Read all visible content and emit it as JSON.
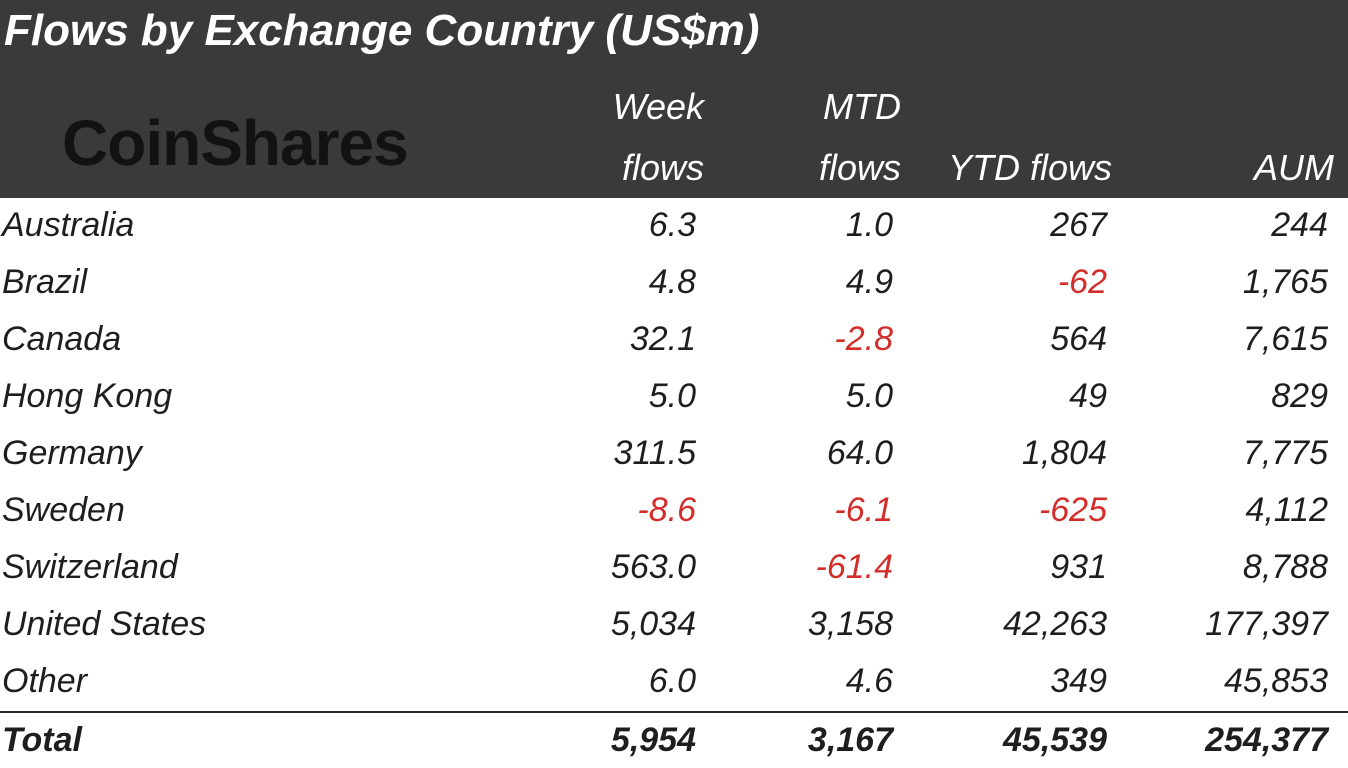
{
  "title": "Flows by Exchange Country (US$m)",
  "logo_text": "CoinShares",
  "colors": {
    "header_bg": "#3a3a3a",
    "negative": "#d32d2a",
    "text": "#1e1e1e"
  },
  "columns": {
    "week_line1": "Week",
    "week_line2": "flows",
    "mtd_line1": "MTD",
    "mtd_line2": "flows",
    "ytd": "YTD flows",
    "aum": "AUM"
  },
  "chart_data": {
    "type": "table",
    "title": "Flows by Exchange Country (US$m)",
    "headers": [
      "Week flows",
      "MTD flows",
      "YTD flows",
      "AUM"
    ],
    "rows": [
      {
        "country": "Australia",
        "week": "6.3",
        "mtd": "1.0",
        "ytd": "267",
        "aum": "244"
      },
      {
        "country": "Brazil",
        "week": "4.8",
        "mtd": "4.9",
        "ytd": "-62",
        "aum": "1,765"
      },
      {
        "country": "Canada",
        "week": "32.1",
        "mtd": "-2.8",
        "ytd": "564",
        "aum": "7,615"
      },
      {
        "country": "Hong Kong",
        "week": "5.0",
        "mtd": "5.0",
        "ytd": "49",
        "aum": "829"
      },
      {
        "country": "Germany",
        "week": "311.5",
        "mtd": "64.0",
        "ytd": "1,804",
        "aum": "7,775"
      },
      {
        "country": "Sweden",
        "week": "-8.6",
        "mtd": "-6.1",
        "ytd": "-625",
        "aum": "4,112"
      },
      {
        "country": "Switzerland",
        "week": "563.0",
        "mtd": "-61.4",
        "ytd": "931",
        "aum": "8,788"
      },
      {
        "country": "United States",
        "week": "5,034",
        "mtd": "3,158",
        "ytd": "42,263",
        "aum": "177,397"
      },
      {
        "country": "Other",
        "week": "6.0",
        "mtd": "4.6",
        "ytd": "349",
        "aum": "45,853"
      }
    ],
    "total": {
      "country": "Total",
      "week": "5,954",
      "mtd": "3,167",
      "ytd": "45,539",
      "aum": "254,377"
    }
  }
}
